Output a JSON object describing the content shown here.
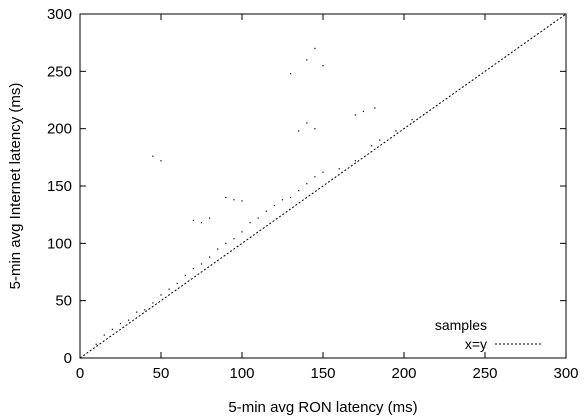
{
  "chart_data": {
    "type": "scatter",
    "title": "",
    "xlabel": "5-min avg RON latency (ms)",
    "ylabel": "5-min avg Internet latency (ms)",
    "xlim": [
      0,
      300
    ],
    "ylim": [
      0,
      300
    ],
    "xticks": [
      "0",
      "50",
      "100",
      "150",
      "200",
      "250",
      "300"
    ],
    "yticks": [
      "0",
      "50",
      "100",
      "150",
      "200",
      "250",
      "300"
    ],
    "grid": false,
    "legend_position": "bottom-right",
    "series": [
      {
        "name": "samples",
        "style": "dots",
        "color": "#000000",
        "description_clusters": [
          {
            "x": [
              5,
              60
            ],
            "y": [
              5,
              60
            ],
            "note": "dense diagonal band near x=y"
          },
          {
            "x": [
              60,
              130
            ],
            "y": [
              60,
              140
            ],
            "note": "dense band slightly above x=y"
          },
          {
            "x": [
              130,
              215
            ],
            "y": [
              150,
              215
            ],
            "note": "clusters above x=y"
          }
        ],
        "points": [
          [
            10,
            12
          ],
          [
            15,
            20
          ],
          [
            20,
            25
          ],
          [
            25,
            30
          ],
          [
            30,
            33
          ],
          [
            35,
            40
          ],
          [
            40,
            42
          ],
          [
            45,
            48
          ],
          [
            50,
            55
          ],
          [
            55,
            60
          ],
          [
            60,
            65
          ],
          [
            65,
            72
          ],
          [
            70,
            78
          ],
          [
            75,
            82
          ],
          [
            80,
            88
          ],
          [
            85,
            95
          ],
          [
            90,
            100
          ],
          [
            95,
            104
          ],
          [
            100,
            110
          ],
          [
            105,
            118
          ],
          [
            110,
            122
          ],
          [
            115,
            128
          ],
          [
            120,
            133
          ],
          [
            125,
            138
          ],
          [
            130,
            140
          ],
          [
            135,
            146
          ],
          [
            140,
            152
          ],
          [
            145,
            158
          ],
          [
            150,
            162
          ],
          [
            160,
            165
          ],
          [
            170,
            172
          ],
          [
            180,
            185
          ],
          [
            185,
            190
          ],
          [
            195,
            198
          ],
          [
            205,
            208
          ],
          [
            212,
            212
          ],
          [
            140,
            205
          ],
          [
            145,
            200
          ],
          [
            135,
            198
          ],
          [
            175,
            215
          ],
          [
            182,
            218
          ],
          [
            170,
            212
          ],
          [
            150,
            255
          ],
          [
            140,
            260
          ],
          [
            130,
            248
          ],
          [
            145,
            270
          ],
          [
            50,
            172
          ],
          [
            45,
            176
          ],
          [
            90,
            140
          ],
          [
            95,
            138
          ],
          [
            100,
            137
          ],
          [
            70,
            120
          ],
          [
            75,
            118
          ],
          [
            80,
            122
          ]
        ]
      },
      {
        "name": "x=y",
        "style": "dashed-line",
        "color": "#000000",
        "x": [
          0,
          300
        ],
        "y": [
          0,
          300
        ]
      }
    ]
  }
}
